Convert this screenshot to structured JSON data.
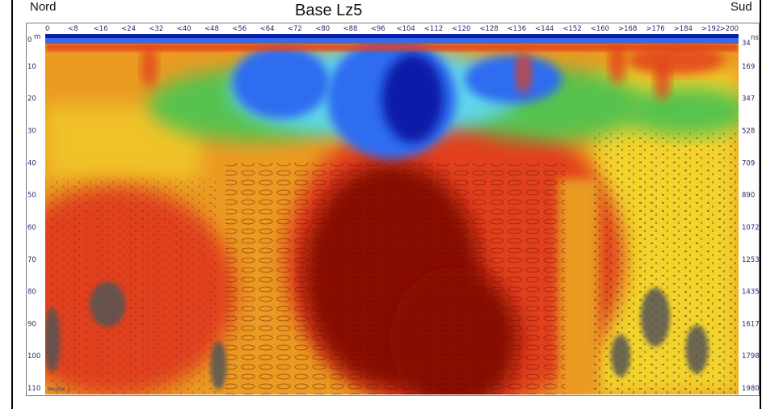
{
  "labels": {
    "left": "Nord",
    "right": "Sud"
  },
  "chart_data": {
    "type": "heatmap",
    "title": "Base Lz5",
    "x_ticks": [
      "0",
      "<8",
      "<16",
      "<24",
      "<32",
      "<40",
      "<48",
      "<56",
      "<64",
      "<72",
      "<80",
      "<88",
      "<96",
      "<104",
      "<112",
      "<120",
      "<128",
      "<136",
      "<144",
      "<152",
      "<160",
      ">168",
      ">176",
      ">184",
      ">192",
      ">200"
    ],
    "xlim": [
      0,
      200
    ],
    "y_ticks_m": [
      "0",
      "10",
      "20",
      "30",
      "40",
      "50",
      "60",
      "70",
      "80",
      "90",
      "100",
      "110"
    ],
    "ylim_m": [
      0,
      112
    ],
    "y_unit_left": "m",
    "y_ticks_ns": [
      "34",
      "169",
      "347",
      "528",
      "709",
      "890",
      "1072",
      "1253",
      "1435",
      "1617",
      "1798",
      "1980"
    ],
    "y_unit_right": "ns",
    "corner_text": "Profile 1",
    "colors": {
      "dark_blue": "#0a1fa8",
      "blue": "#2f6cf0",
      "cyan": "#5ed6ec",
      "green": "#56c24e",
      "yellow": "#f3d32b",
      "orange": "#eb9a22",
      "red": "#e2411a",
      "dark_red": "#8a0a06",
      "gray": "#555555"
    }
  }
}
